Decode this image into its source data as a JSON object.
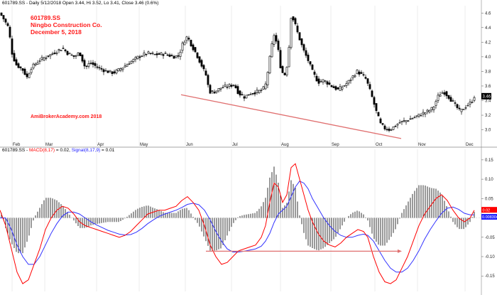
{
  "header": {
    "price_line": "601789.SS - Daily 5/12/2018 Open 3.44, Hi 3.52, Lo 3.41, Close 3.46 (0.6%)",
    "macd_prefix": "601789.SS - ",
    "macd_label": "MACD(8,17)",
    "macd_value": " = 0.02, ",
    "signal_label": "Signal(8,17,9)",
    "signal_value": " = 0.01"
  },
  "annotation": {
    "ticker": "601789.SS",
    "company": "Ningbo Construction Co.",
    "date": "December 5, 2018",
    "watermark": "AmiBrokerAcademy.com  2018"
  },
  "colors": {
    "bg": "#ffffff",
    "candle": "#000000",
    "annotation_red": "#ff1a1a",
    "trend_line": "#e07070",
    "macd_line": "#ff0000",
    "signal_line": "#3333ff",
    "histogram": "#000000",
    "grid": "#d8d8d8",
    "price_badge": "#ff0000",
    "macd_badge_red": "#ff0000",
    "macd_badge_blue": "#2020ff"
  },
  "chart_data": [
    {
      "type": "candlestick",
      "x_month_labels": [
        "Feb",
        "Mar",
        "Apr",
        "May",
        "Jun",
        "Jul",
        "Aug",
        "Sep",
        "Oct",
        "Nov",
        "Dec"
      ],
      "x_month_positions": [
        17,
        63,
        136,
        196,
        261,
        326,
        395,
        466,
        528,
        588,
        655
      ],
      "ylim": [
        2.85,
        4.7
      ],
      "y_ticks": [
        3.0,
        3.2,
        3.4,
        3.6,
        3.8,
        4.0,
        4.2,
        4.4,
        4.6
      ],
      "y_tick_labels": [
        "3.0",
        "3.2",
        "3.4",
        "3.6",
        "3.8",
        "4.0",
        "4.2",
        "4.4",
        "4.6"
      ],
      "last_close_badge": "3.46",
      "last_close": 3.46,
      "control_points": [
        [
          0,
          4.6
        ],
        [
          5,
          4.52
        ],
        [
          12,
          4.4
        ],
        [
          17,
          4.05
        ],
        [
          22,
          3.9
        ],
        [
          32,
          3.82
        ],
        [
          38,
          3.72
        ],
        [
          44,
          3.85
        ],
        [
          55,
          3.95
        ],
        [
          65,
          4.0
        ],
        [
          75,
          4.05
        ],
        [
          88,
          4.12
        ],
        [
          95,
          4.05
        ],
        [
          105,
          4.0
        ],
        [
          112,
          4.06
        ],
        [
          120,
          3.85
        ],
        [
          127,
          3.92
        ],
        [
          138,
          3.85
        ],
        [
          150,
          3.8
        ],
        [
          160,
          3.78
        ],
        [
          172,
          3.85
        ],
        [
          184,
          3.93
        ],
        [
          195,
          4.0
        ],
        [
          207,
          4.05
        ],
        [
          218,
          4.03
        ],
        [
          232,
          4.04
        ],
        [
          244,
          4.0
        ],
        [
          252,
          4.02
        ],
        [
          258,
          4.2
        ],
        [
          264,
          4.28
        ],
        [
          270,
          4.15
        ],
        [
          276,
          4.05
        ],
        [
          283,
          3.9
        ],
        [
          290,
          3.75
        ],
        [
          295,
          3.52
        ],
        [
          302,
          3.52
        ],
        [
          312,
          3.58
        ],
        [
          322,
          3.6
        ],
        [
          330,
          3.62
        ],
        [
          336,
          3.5
        ],
        [
          344,
          3.45
        ],
        [
          353,
          3.5
        ],
        [
          362,
          3.52
        ],
        [
          370,
          3.55
        ],
        [
          374,
          3.62
        ],
        [
          378,
          3.85
        ],
        [
          382,
          4.12
        ],
        [
          386,
          4.3
        ],
        [
          391,
          4.15
        ],
        [
          396,
          3.8
        ],
        [
          402,
          3.75
        ],
        [
          406,
          4.0
        ],
        [
          410,
          4.55
        ],
        [
          414,
          4.5
        ],
        [
          420,
          4.3
        ],
        [
          427,
          4.1
        ],
        [
          434,
          3.95
        ],
        [
          440,
          3.8
        ],
        [
          448,
          3.65
        ],
        [
          456,
          3.68
        ],
        [
          464,
          3.62
        ],
        [
          470,
          3.58
        ],
        [
          476,
          3.55
        ],
        [
          484,
          3.6
        ],
        [
          490,
          3.65
        ],
        [
          496,
          3.72
        ],
        [
          503,
          3.8
        ],
        [
          510,
          3.75
        ],
        [
          515,
          3.7
        ],
        [
          519,
          3.6
        ],
        [
          523,
          3.48
        ],
        [
          530,
          3.25
        ],
        [
          536,
          3.08
        ],
        [
          542,
          3.02
        ],
        [
          549,
          3.0
        ],
        [
          556,
          3.05
        ],
        [
          563,
          3.1
        ],
        [
          570,
          3.12
        ],
        [
          578,
          3.15
        ],
        [
          586,
          3.18
        ],
        [
          594,
          3.22
        ],
        [
          602,
          3.25
        ],
        [
          610,
          3.3
        ],
        [
          618,
          3.48
        ],
        [
          625,
          3.52
        ],
        [
          632,
          3.45
        ],
        [
          640,
          3.35
        ],
        [
          648,
          3.25
        ],
        [
          656,
          3.32
        ],
        [
          664,
          3.38
        ],
        [
          668,
          3.46
        ]
      ]
    },
    {
      "type": "macd",
      "series": [
        {
          "name": "MACD(8,17)",
          "color": "#ff0000"
        },
        {
          "name": "Signal(8,17,9)",
          "color": "#3333ff"
        }
      ],
      "ylim": [
        -0.19,
        0.17
      ],
      "y_ticks": [
        0.15,
        0.1,
        0.05,
        0,
        -0.05,
        -0.1,
        -0.15
      ],
      "y_tick_labels": [
        "0.15",
        "0.10",
        "0.05",
        "0",
        "-0.05",
        "-0.10",
        "-0.15"
      ],
      "badges": [
        "0.02",
        "0.008304"
      ],
      "macd_points": [
        [
          0,
          0.02
        ],
        [
          8,
          -0.02
        ],
        [
          16,
          -0.08
        ],
        [
          24,
          -0.14
        ],
        [
          32,
          -0.17
        ],
        [
          40,
          -0.16
        ],
        [
          48,
          -0.12
        ],
        [
          56,
          -0.08
        ],
        [
          64,
          -0.03
        ],
        [
          72,
          0.0
        ],
        [
          80,
          0.02
        ],
        [
          88,
          0.03
        ],
        [
          96,
          0.025
        ],
        [
          104,
          0.01
        ],
        [
          112,
          -0.01
        ],
        [
          120,
          -0.02
        ],
        [
          128,
          -0.025
        ],
        [
          136,
          -0.03
        ],
        [
          144,
          -0.035
        ],
        [
          152,
          -0.04
        ],
        [
          160,
          -0.045
        ],
        [
          168,
          -0.05
        ],
        [
          176,
          -0.045
        ],
        [
          184,
          -0.035
        ],
        [
          192,
          -0.02
        ],
        [
          200,
          -0.005
        ],
        [
          208,
          0.01
        ],
        [
          216,
          0.015
        ],
        [
          224,
          0.02
        ],
        [
          232,
          0.02
        ],
        [
          240,
          0.025
        ],
        [
          248,
          0.03
        ],
        [
          256,
          0.045
        ],
        [
          264,
          0.055
        ],
        [
          272,
          0.04
        ],
        [
          280,
          0.02
        ],
        [
          288,
          -0.02
        ],
        [
          296,
          -0.07
        ],
        [
          304,
          -0.1
        ],
        [
          312,
          -0.12
        ],
        [
          320,
          -0.115
        ],
        [
          328,
          -0.1
        ],
        [
          336,
          -0.085
        ],
        [
          344,
          -0.08
        ],
        [
          352,
          -0.075
        ],
        [
          360,
          -0.07
        ],
        [
          368,
          -0.05
        ],
        [
          374,
          -0.02
        ],
        [
          380,
          0.04
        ],
        [
          386,
          0.09
        ],
        [
          392,
          0.08
        ],
        [
          398,
          0.04
        ],
        [
          404,
          0.06
        ],
        [
          410,
          0.13
        ],
        [
          416,
          0.14
        ],
        [
          422,
          0.1
        ],
        [
          428,
          0.06
        ],
        [
          434,
          0.02
        ],
        [
          440,
          -0.01
        ],
        [
          448,
          -0.04
        ],
        [
          456,
          -0.06
        ],
        [
          464,
          -0.07
        ],
        [
          472,
          -0.075
        ],
        [
          480,
          -0.065
        ],
        [
          488,
          -0.05
        ],
        [
          496,
          -0.04
        ],
        [
          504,
          -0.03
        ],
        [
          512,
          -0.035
        ],
        [
          518,
          -0.05
        ],
        [
          526,
          -0.1
        ],
        [
          534,
          -0.14
        ],
        [
          542,
          -0.165
        ],
        [
          550,
          -0.17
        ],
        [
          558,
          -0.16
        ],
        [
          566,
          -0.13
        ],
        [
          574,
          -0.1
        ],
        [
          582,
          -0.06
        ],
        [
          590,
          -0.02
        ],
        [
          598,
          0.01
        ],
        [
          606,
          0.03
        ],
        [
          614,
          0.05
        ],
        [
          622,
          0.06
        ],
        [
          630,
          0.045
        ],
        [
          638,
          0.02
        ],
        [
          646,
          0.0
        ],
        [
          654,
          -0.01
        ],
        [
          662,
          0.0
        ],
        [
          668,
          0.02
        ]
      ],
      "signal_points": [
        [
          0,
          0.0
        ],
        [
          8,
          0.0
        ],
        [
          16,
          -0.03
        ],
        [
          24,
          -0.07
        ],
        [
          32,
          -0.1
        ],
        [
          40,
          -0.12
        ],
        [
          48,
          -0.12
        ],
        [
          56,
          -0.1
        ],
        [
          64,
          -0.07
        ],
        [
          72,
          -0.04
        ],
        [
          80,
          -0.015
        ],
        [
          88,
          0.005
        ],
        [
          96,
          0.015
        ],
        [
          104,
          0.015
        ],
        [
          112,
          0.01
        ],
        [
          120,
          0.0
        ],
        [
          128,
          -0.01
        ],
        [
          136,
          -0.018
        ],
        [
          144,
          -0.025
        ],
        [
          152,
          -0.032
        ],
        [
          160,
          -0.037
        ],
        [
          168,
          -0.042
        ],
        [
          176,
          -0.044
        ],
        [
          184,
          -0.043
        ],
        [
          192,
          -0.037
        ],
        [
          200,
          -0.027
        ],
        [
          208,
          -0.015
        ],
        [
          216,
          -0.005
        ],
        [
          224,
          0.004
        ],
        [
          232,
          0.01
        ],
        [
          240,
          0.015
        ],
        [
          248,
          0.02
        ],
        [
          256,
          0.027
        ],
        [
          264,
          0.035
        ],
        [
          272,
          0.038
        ],
        [
          280,
          0.034
        ],
        [
          288,
          0.02
        ],
        [
          296,
          -0.005
        ],
        [
          304,
          -0.035
        ],
        [
          312,
          -0.06
        ],
        [
          320,
          -0.08
        ],
        [
          328,
          -0.088
        ],
        [
          336,
          -0.088
        ],
        [
          344,
          -0.086
        ],
        [
          352,
          -0.083
        ],
        [
          360,
          -0.08
        ],
        [
          368,
          -0.073
        ],
        [
          374,
          -0.06
        ],
        [
          380,
          -0.04
        ],
        [
          386,
          -0.012
        ],
        [
          392,
          0.01
        ],
        [
          398,
          0.02
        ],
        [
          404,
          0.03
        ],
        [
          410,
          0.055
        ],
        [
          416,
          0.08
        ],
        [
          422,
          0.095
        ],
        [
          428,
          0.09
        ],
        [
          434,
          0.075
        ],
        [
          440,
          0.05
        ],
        [
          448,
          0.025
        ],
        [
          456,
          0.0
        ],
        [
          464,
          -0.02
        ],
        [
          472,
          -0.035
        ],
        [
          480,
          -0.045
        ],
        [
          488,
          -0.05
        ],
        [
          496,
          -0.05
        ],
        [
          504,
          -0.045
        ],
        [
          512,
          -0.042
        ],
        [
          518,
          -0.045
        ],
        [
          526,
          -0.06
        ],
        [
          534,
          -0.085
        ],
        [
          542,
          -0.11
        ],
        [
          550,
          -0.13
        ],
        [
          558,
          -0.14
        ],
        [
          566,
          -0.14
        ],
        [
          574,
          -0.13
        ],
        [
          582,
          -0.11
        ],
        [
          590,
          -0.085
        ],
        [
          598,
          -0.055
        ],
        [
          606,
          -0.03
        ],
        [
          614,
          -0.008
        ],
        [
          622,
          0.012
        ],
        [
          630,
          0.025
        ],
        [
          638,
          0.028
        ],
        [
          646,
          0.022
        ],
        [
          654,
          0.012
        ],
        [
          662,
          0.008
        ],
        [
          668,
          0.008
        ]
      ]
    }
  ]
}
